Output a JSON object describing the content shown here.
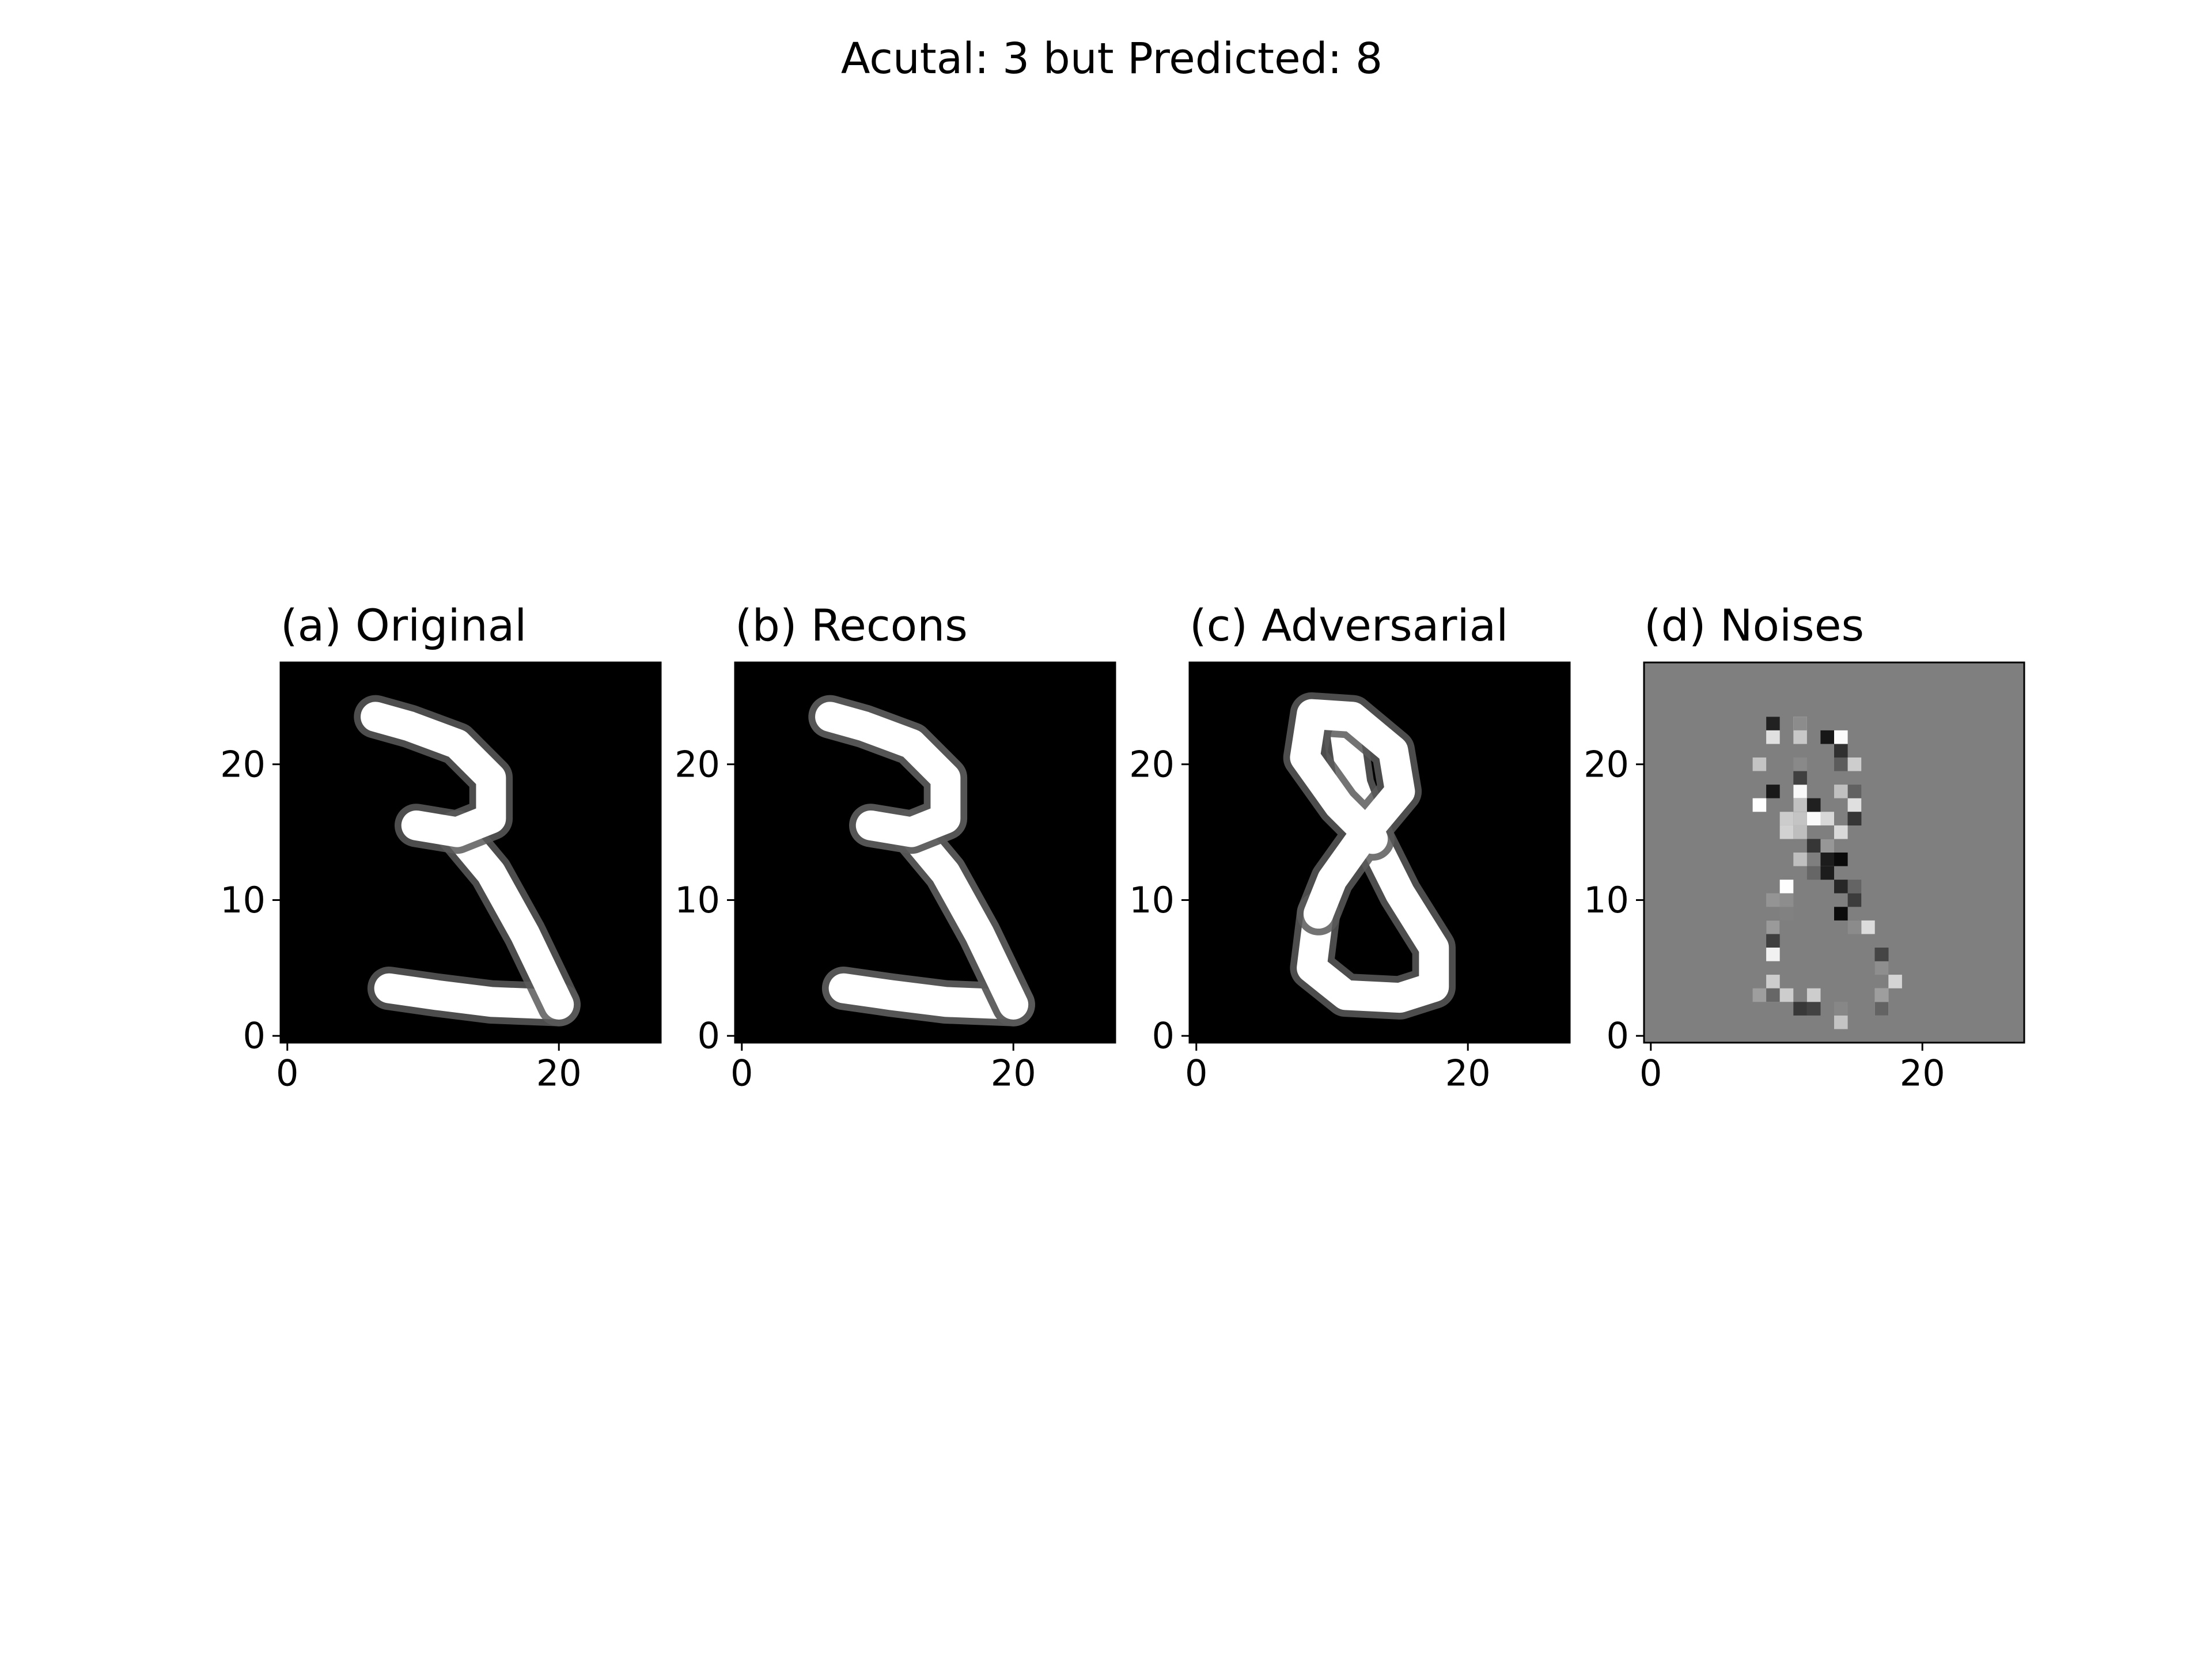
{
  "figure": {
    "suptitle": "Acutal: 3 but Predicted: 8"
  },
  "colors": {
    "background": "#ffffff",
    "image_black": "#000000",
    "noise_gray": "#7f7f7f",
    "ink_white": "#ffffff",
    "axis": "#000000"
  },
  "chart_data": [
    {
      "type": "heatmap",
      "title": "(a) Original",
      "colormap": "gray",
      "background": "black",
      "digit": "3",
      "xlim": [
        -0.5,
        27.5
      ],
      "ylim": [
        27.5,
        -0.5
      ],
      "xticks": [
        0,
        20
      ],
      "yticks": [
        0,
        10,
        20
      ],
      "xticklabels": [
        "0",
        "20"
      ],
      "yticklabels": [
        "0",
        "10",
        "20"
      ]
    },
    {
      "type": "heatmap",
      "title": "(b) Recons",
      "colormap": "gray",
      "background": "black",
      "digit": "3",
      "xlim": [
        -0.5,
        27.5
      ],
      "ylim": [
        27.5,
        -0.5
      ],
      "xticks": [
        0,
        20
      ],
      "yticks": [
        0,
        10,
        20
      ],
      "xticklabels": [
        "0",
        "20"
      ],
      "yticklabels": [
        "0",
        "10",
        "20"
      ]
    },
    {
      "type": "heatmap",
      "title": "(c) Adversarial",
      "colormap": "gray",
      "background": "black",
      "digit": "8",
      "xlim": [
        -0.5,
        27.5
      ],
      "ylim": [
        27.5,
        -0.5
      ],
      "xticks": [
        0,
        20
      ],
      "yticks": [
        0,
        10,
        20
      ],
      "xticklabels": [
        "0",
        "20"
      ],
      "yticklabels": [
        "0",
        "10",
        "20"
      ]
    },
    {
      "type": "heatmap",
      "title": "(d) Noises",
      "colormap": "gray",
      "background": "gray",
      "digit": "8",
      "xlim": [
        -0.5,
        27.5
      ],
      "ylim": [
        27.5,
        -0.5
      ],
      "xticks": [
        0,
        20
      ],
      "yticks": [
        0,
        10,
        20
      ],
      "xticklabels": [
        "0",
        "20"
      ],
      "yticklabels": [
        "0",
        "10",
        "20"
      ]
    }
  ]
}
